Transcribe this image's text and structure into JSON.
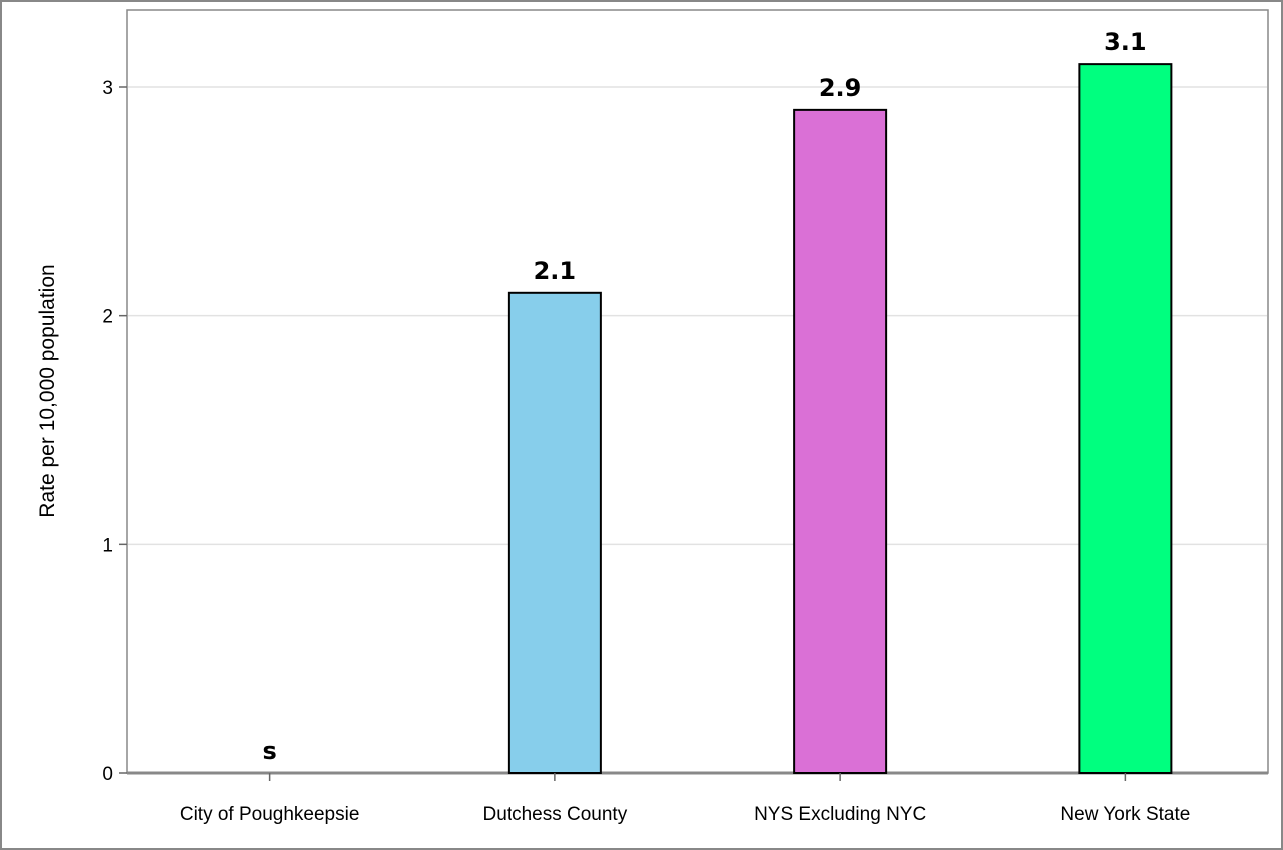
{
  "chart_data": {
    "type": "bar",
    "title": "",
    "xlabel": "",
    "ylabel": "Rate per 10,000 population",
    "categories": [
      "City of Poughkeepsie",
      "Dutchess County",
      "NYS Excluding NYC",
      "New York State"
    ],
    "values": [
      null,
      2.1,
      2.9,
      3.1
    ],
    "data_labels": [
      "s",
      "2.1",
      "2.9",
      "3.1"
    ],
    "colors": [
      "#87ceeb",
      "#87ceeb",
      "#da70d6",
      "#00ff7f"
    ],
    "ylim": [
      0,
      3.3
    ],
    "yticks": [
      0,
      1,
      2,
      3
    ],
    "grid": true,
    "legend": "none"
  }
}
